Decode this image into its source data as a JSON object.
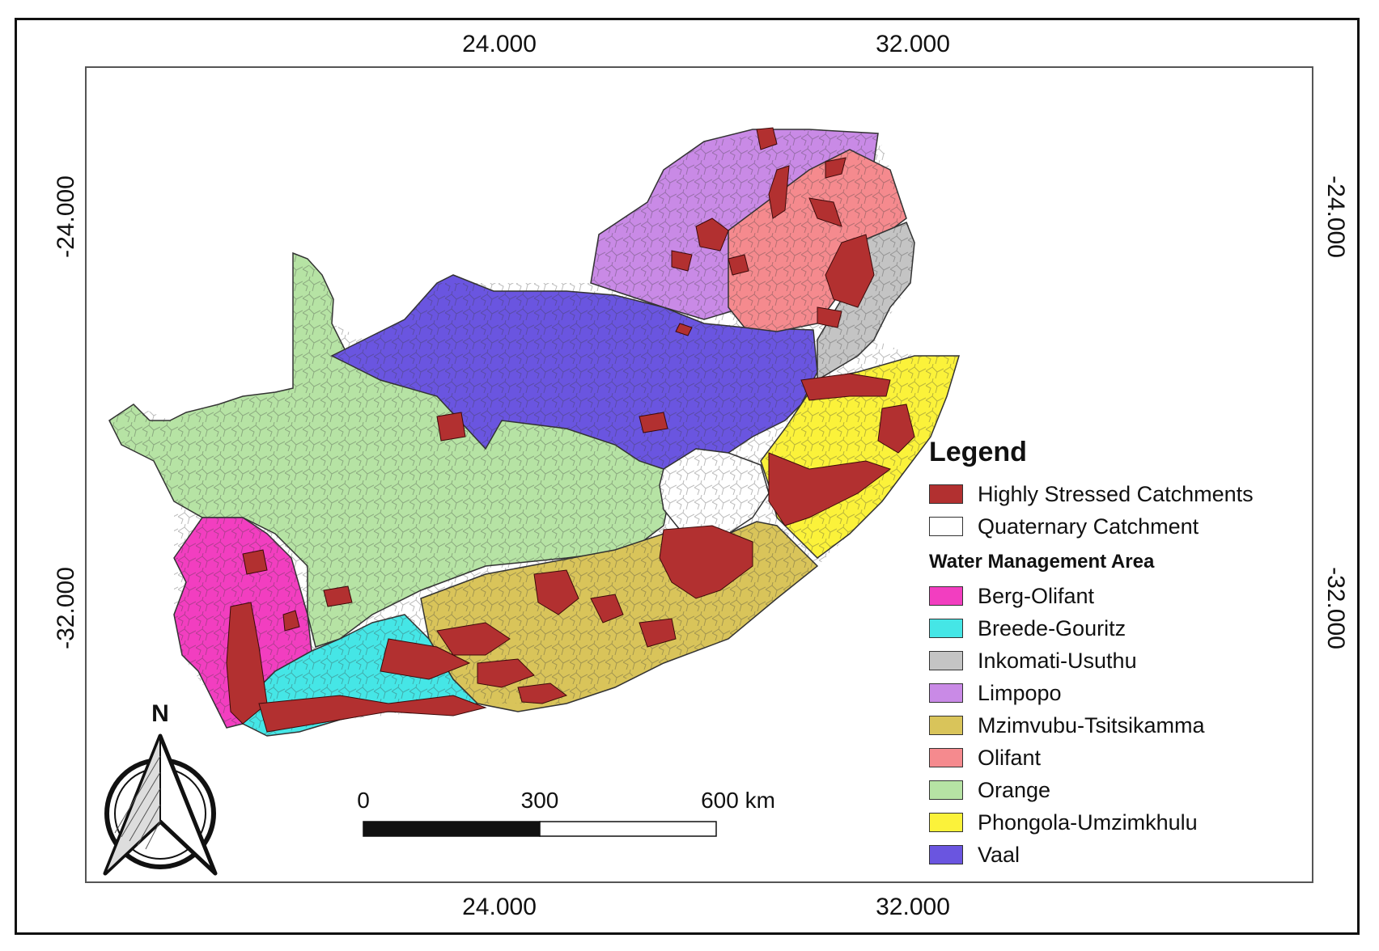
{
  "axes": {
    "top_ticks": [
      "24.000",
      "32.000"
    ],
    "bottom_ticks": [
      "24.000",
      "32.000"
    ],
    "left_ticks": [
      "-24.000",
      "-32.000"
    ],
    "right_ticks": [
      "-24.000",
      "-32.000"
    ]
  },
  "legend": {
    "title": "Legend",
    "top_items": [
      {
        "label": "Highly Stressed Catchments",
        "color": "#b23030"
      },
      {
        "label": "Quaternary Catchment",
        "color": "#ffffff"
      }
    ],
    "subtitle": "Water Management Area",
    "wma_items": [
      {
        "label": "Berg-Olifant",
        "color": "#f23ec0"
      },
      {
        "label": "Breede-Gouritz",
        "color": "#45e6e6"
      },
      {
        "label": "Inkomati-Usuthu",
        "color": "#c4c4c4"
      },
      {
        "label": "Limpopo",
        "color": "#c98ae6"
      },
      {
        "label": "Mzimvubu-Tsitsikamma",
        "color": "#d9c45a"
      },
      {
        "label": "Olifant",
        "color": "#f58a8e"
      },
      {
        "label": "Orange",
        "color": "#b6e3a4"
      },
      {
        "label": "Phongola-Umzimkhulu",
        "color": "#fbf23a"
      },
      {
        "label": "Vaal",
        "color": "#6a55e0"
      }
    ]
  },
  "scale_bar": {
    "labels": [
      "0",
      "300",
      "600 km"
    ]
  },
  "north_arrow": {
    "label": "N",
    "icon": "north-arrow-icon"
  }
}
